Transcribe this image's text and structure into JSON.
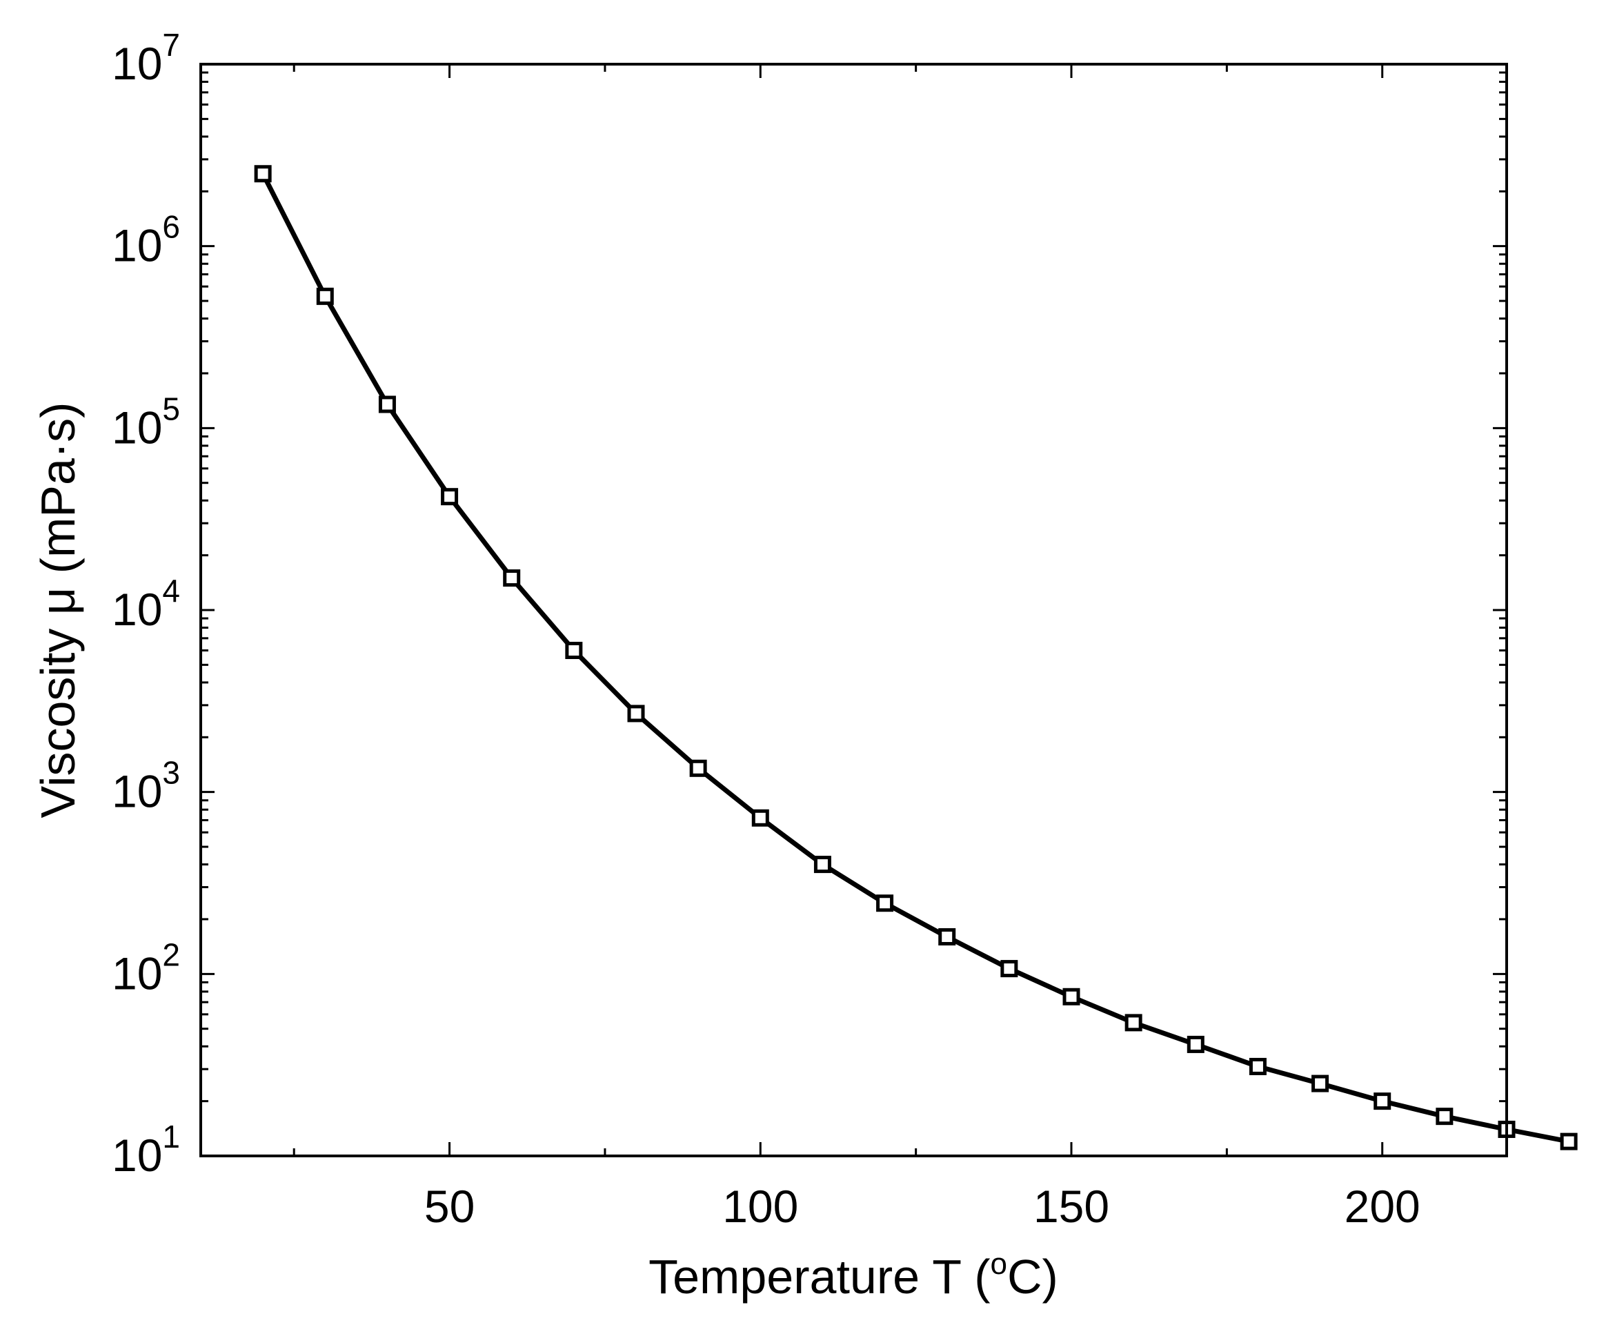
{
  "chart_data": {
    "type": "line",
    "title": "",
    "xlabel": "Temperature T (",
    "xlabel_sup": "o",
    "xlabel_tail": "C)",
    "ylabel": "Viscosity  μ  (mPa·s)",
    "xlim": [
      10,
      220
    ],
    "ylim": [
      10,
      10000000
    ],
    "yscale": "log",
    "x_ticks": [
      50,
      100,
      150,
      200
    ],
    "x_tick_labels": [
      "50",
      "100",
      "150",
      "200"
    ],
    "y_ticks": [
      10,
      100,
      1000,
      10000,
      100000,
      1000000,
      10000000
    ],
    "y_tick_base": "10",
    "y_tick_exponents": [
      "1",
      "2",
      "3",
      "4",
      "5",
      "6",
      "7"
    ],
    "grid": false,
    "marker": "open-square",
    "line_color": "#000000",
    "series": [
      {
        "x": [
          20,
          30,
          40,
          50,
          60,
          70,
          80,
          90,
          100,
          110,
          120,
          130,
          140,
          150,
          160,
          170,
          180,
          190,
          200,
          210,
          220,
          230
        ],
        "y": [
          2500000,
          530000,
          135000,
          42000,
          15000,
          6000,
          2700,
          1350,
          720,
          400,
          245,
          160,
          107,
          75,
          54,
          41,
          31,
          25,
          20,
          16.5,
          14,
          12
        ]
      }
    ]
  }
}
